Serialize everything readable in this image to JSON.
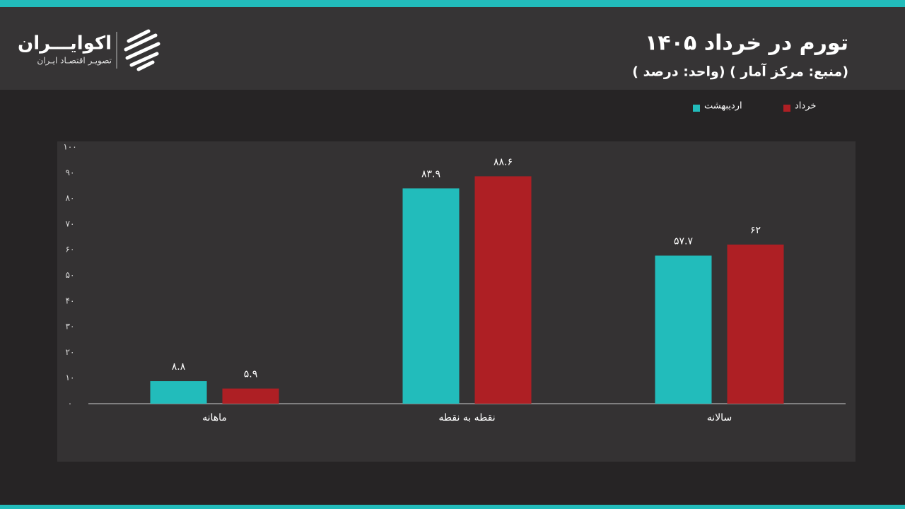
{
  "brand": {
    "name": "اکوایـــران",
    "tagline": "تصویـر اقتصـاد ایـران"
  },
  "chart_data": {
    "type": "bar",
    "title": "تورم در خرداد ۱۴۰۵",
    "subtitle": "( واحد: درصد) ( منبع: مرکز آمار)",
    "categories": [
      "ماهانه",
      "نقطه به نقطه",
      "سالانه"
    ],
    "series": [
      {
        "name": "اردیبهشت",
        "color": "#22bcbb",
        "values": [
          8.8,
          83.9,
          57.7
        ],
        "value_labels": [
          "۸.۸",
          "۸۳.۹",
          "۵۷.۷"
        ]
      },
      {
        "name": "خرداد",
        "color": "#ae1f24",
        "values": [
          5.9,
          88.6,
          62
        ],
        "value_labels": [
          "۵.۹",
          "۸۸.۶",
          "۶۲"
        ]
      }
    ],
    "ylim": [
      0,
      100
    ],
    "yticks": [
      {
        "value": 0,
        "label": "۰"
      },
      {
        "value": 10,
        "label": "۱۰"
      },
      {
        "value": 20,
        "label": "۲۰"
      },
      {
        "value": 30,
        "label": "۳۰"
      },
      {
        "value": 40,
        "label": "۴۰"
      },
      {
        "value": 50,
        "label": "۵۰"
      },
      {
        "value": 60,
        "label": "۶۰"
      },
      {
        "value": 70,
        "label": "۷۰"
      },
      {
        "value": 80,
        "label": "۸۰"
      },
      {
        "value": 90,
        "label": "۹۰"
      },
      {
        "value": 100,
        "label": "۱۰۰"
      }
    ],
    "grid": false
  }
}
